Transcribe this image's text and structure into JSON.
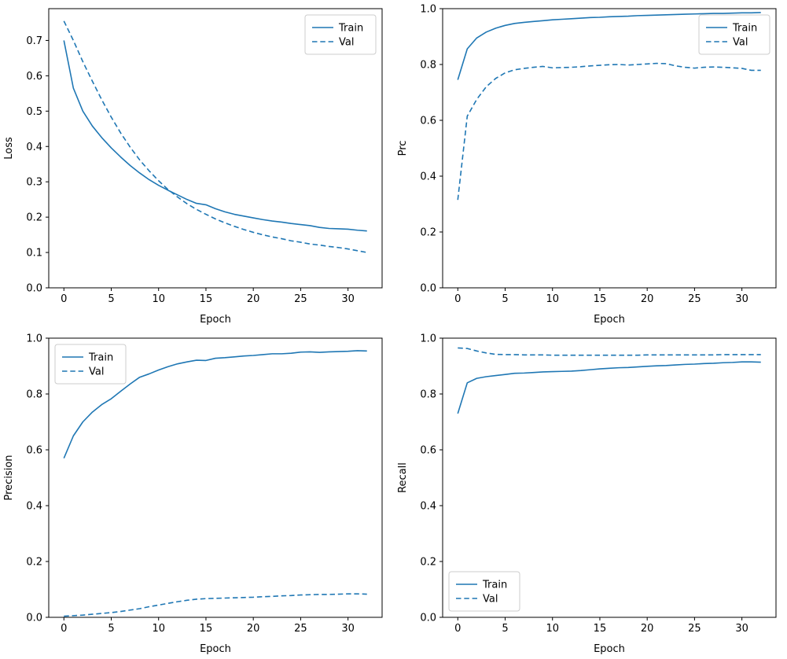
{
  "figure": {
    "background": "#ffffff",
    "line_color": "#1f77b4",
    "legend_labels": [
      "Train",
      "Val"
    ]
  },
  "chart_data": [
    {
      "type": "line",
      "name": "loss",
      "xlabel": "Epoch",
      "ylabel": "Loss",
      "xlim": [
        -1.6,
        33.6
      ],
      "ylim": [
        0.0,
        0.79
      ],
      "xticks": [
        0,
        5,
        10,
        15,
        20,
        25,
        30
      ],
      "yticks": [
        0.0,
        0.1,
        0.2,
        0.3,
        0.4,
        0.5,
        0.6,
        0.7
      ],
      "legend_pos": "upper right",
      "grid": false,
      "x": [
        0,
        1,
        2,
        3,
        4,
        5,
        6,
        7,
        8,
        9,
        10,
        11,
        12,
        13,
        14,
        15,
        16,
        17,
        18,
        19,
        20,
        21,
        22,
        23,
        24,
        25,
        26,
        27,
        28,
        29,
        30,
        31,
        32
      ],
      "series": [
        {
          "name": "Train",
          "style": "solid",
          "color": "#1f77b4",
          "values": [
            0.7,
            0.565,
            0.5,
            0.458,
            0.425,
            0.396,
            0.37,
            0.346,
            0.325,
            0.306,
            0.29,
            0.276,
            0.263,
            0.25,
            0.239,
            0.235,
            0.224,
            0.215,
            0.208,
            0.203,
            0.198,
            0.193,
            0.189,
            0.186,
            0.182,
            0.179,
            0.176,
            0.171,
            0.168,
            0.167,
            0.166,
            0.163,
            0.161
          ]
        },
        {
          "name": "Val",
          "style": "dashed",
          "color": "#1f77b4",
          "values": [
            0.755,
            0.7,
            0.64,
            0.585,
            0.532,
            0.483,
            0.438,
            0.398,
            0.362,
            0.331,
            0.303,
            0.278,
            0.257,
            0.238,
            0.222,
            0.208,
            0.195,
            0.184,
            0.174,
            0.165,
            0.157,
            0.15,
            0.144,
            0.139,
            0.133,
            0.129,
            0.124,
            0.121,
            0.117,
            0.114,
            0.11,
            0.105,
            0.1
          ]
        }
      ]
    },
    {
      "type": "line",
      "name": "prc",
      "xlabel": "Epoch",
      "ylabel": "Prc",
      "xlim": [
        -1.6,
        33.6
      ],
      "ylim": [
        0.0,
        1.0
      ],
      "xticks": [
        0,
        5,
        10,
        15,
        20,
        25,
        30
      ],
      "yticks": [
        0.0,
        0.2,
        0.4,
        0.6,
        0.8,
        1.0
      ],
      "legend_pos": "upper right",
      "grid": false,
      "x": [
        0,
        1,
        2,
        3,
        4,
        5,
        6,
        7,
        8,
        9,
        10,
        11,
        12,
        13,
        14,
        15,
        16,
        17,
        18,
        19,
        20,
        21,
        22,
        23,
        24,
        25,
        26,
        27,
        28,
        29,
        30,
        31,
        32
      ],
      "series": [
        {
          "name": "Train",
          "style": "solid",
          "color": "#1f77b4",
          "values": [
            0.745,
            0.856,
            0.895,
            0.916,
            0.93,
            0.94,
            0.947,
            0.951,
            0.954,
            0.957,
            0.96,
            0.962,
            0.964,
            0.966,
            0.968,
            0.969,
            0.971,
            0.972,
            0.973,
            0.975,
            0.976,
            0.977,
            0.978,
            0.979,
            0.98,
            0.981,
            0.982,
            0.983,
            0.983,
            0.984,
            0.985,
            0.985,
            0.986
          ]
        },
        {
          "name": "Val",
          "style": "dashed",
          "color": "#1f77b4",
          "values": [
            0.315,
            0.615,
            0.675,
            0.72,
            0.75,
            0.77,
            0.781,
            0.786,
            0.79,
            0.793,
            0.788,
            0.789,
            0.79,
            0.792,
            0.795,
            0.797,
            0.799,
            0.8,
            0.798,
            0.8,
            0.802,
            0.804,
            0.803,
            0.795,
            0.79,
            0.787,
            0.79,
            0.791,
            0.79,
            0.788,
            0.786,
            0.779,
            0.779
          ]
        }
      ]
    },
    {
      "type": "line",
      "name": "precision",
      "xlabel": "Epoch",
      "ylabel": "Precision",
      "xlim": [
        -1.6,
        33.6
      ],
      "ylim": [
        0.0,
        1.0
      ],
      "xticks": [
        0,
        5,
        10,
        15,
        20,
        25,
        30
      ],
      "yticks": [
        0.0,
        0.2,
        0.4,
        0.6,
        0.8,
        1.0
      ],
      "legend_pos": "upper left",
      "grid": false,
      "x": [
        0,
        1,
        2,
        3,
        4,
        5,
        6,
        7,
        8,
        9,
        10,
        11,
        12,
        13,
        14,
        15,
        16,
        17,
        18,
        19,
        20,
        21,
        22,
        23,
        24,
        25,
        26,
        27,
        28,
        29,
        30,
        31,
        32
      ],
      "series": [
        {
          "name": "Train",
          "style": "solid",
          "color": "#1f77b4",
          "values": [
            0.57,
            0.65,
            0.7,
            0.735,
            0.762,
            0.783,
            0.81,
            0.836,
            0.86,
            0.872,
            0.886,
            0.898,
            0.908,
            0.915,
            0.921,
            0.92,
            0.928,
            0.93,
            0.933,
            0.936,
            0.938,
            0.941,
            0.944,
            0.944,
            0.946,
            0.95,
            0.951,
            0.949,
            0.951,
            0.952,
            0.953,
            0.955,
            0.954
          ]
        },
        {
          "name": "Val",
          "style": "dashed",
          "color": "#1f77b4",
          "values": [
            0.004,
            0.006,
            0.008,
            0.011,
            0.014,
            0.017,
            0.021,
            0.026,
            0.031,
            0.038,
            0.044,
            0.05,
            0.056,
            0.061,
            0.065,
            0.067,
            0.068,
            0.069,
            0.07,
            0.071,
            0.072,
            0.074,
            0.075,
            0.077,
            0.078,
            0.08,
            0.081,
            0.082,
            0.082,
            0.083,
            0.084,
            0.084,
            0.083
          ]
        }
      ]
    },
    {
      "type": "line",
      "name": "recall",
      "xlabel": "Epoch",
      "ylabel": "Recall",
      "xlim": [
        -1.6,
        33.6
      ],
      "ylim": [
        0.0,
        1.0
      ],
      "xticks": [
        0,
        5,
        10,
        15,
        20,
        25,
        30
      ],
      "yticks": [
        0.0,
        0.2,
        0.4,
        0.6,
        0.8,
        1.0
      ],
      "legend_pos": "lower left",
      "grid": false,
      "x": [
        0,
        1,
        2,
        3,
        4,
        5,
        6,
        7,
        8,
        9,
        10,
        11,
        12,
        13,
        14,
        15,
        16,
        17,
        18,
        19,
        20,
        21,
        22,
        23,
        24,
        25,
        26,
        27,
        28,
        29,
        30,
        31,
        32
      ],
      "series": [
        {
          "name": "Train",
          "style": "solid",
          "color": "#1f77b4",
          "values": [
            0.73,
            0.84,
            0.856,
            0.862,
            0.866,
            0.87,
            0.874,
            0.875,
            0.877,
            0.879,
            0.88,
            0.881,
            0.882,
            0.884,
            0.887,
            0.89,
            0.892,
            0.894,
            0.895,
            0.897,
            0.899,
            0.901,
            0.902,
            0.904,
            0.906,
            0.907,
            0.909,
            0.91,
            0.912,
            0.913,
            0.915,
            0.915,
            0.914
          ]
        },
        {
          "name": "Val",
          "style": "dashed",
          "color": "#1f77b4",
          "values": [
            0.965,
            0.963,
            0.954,
            0.947,
            0.942,
            0.941,
            0.941,
            0.94,
            0.94,
            0.94,
            0.939,
            0.939,
            0.939,
            0.939,
            0.939,
            0.939,
            0.939,
            0.939,
            0.939,
            0.939,
            0.94,
            0.94,
            0.94,
            0.94,
            0.94,
            0.94,
            0.94,
            0.94,
            0.941,
            0.941,
            0.941,
            0.941,
            0.941
          ]
        }
      ]
    }
  ]
}
